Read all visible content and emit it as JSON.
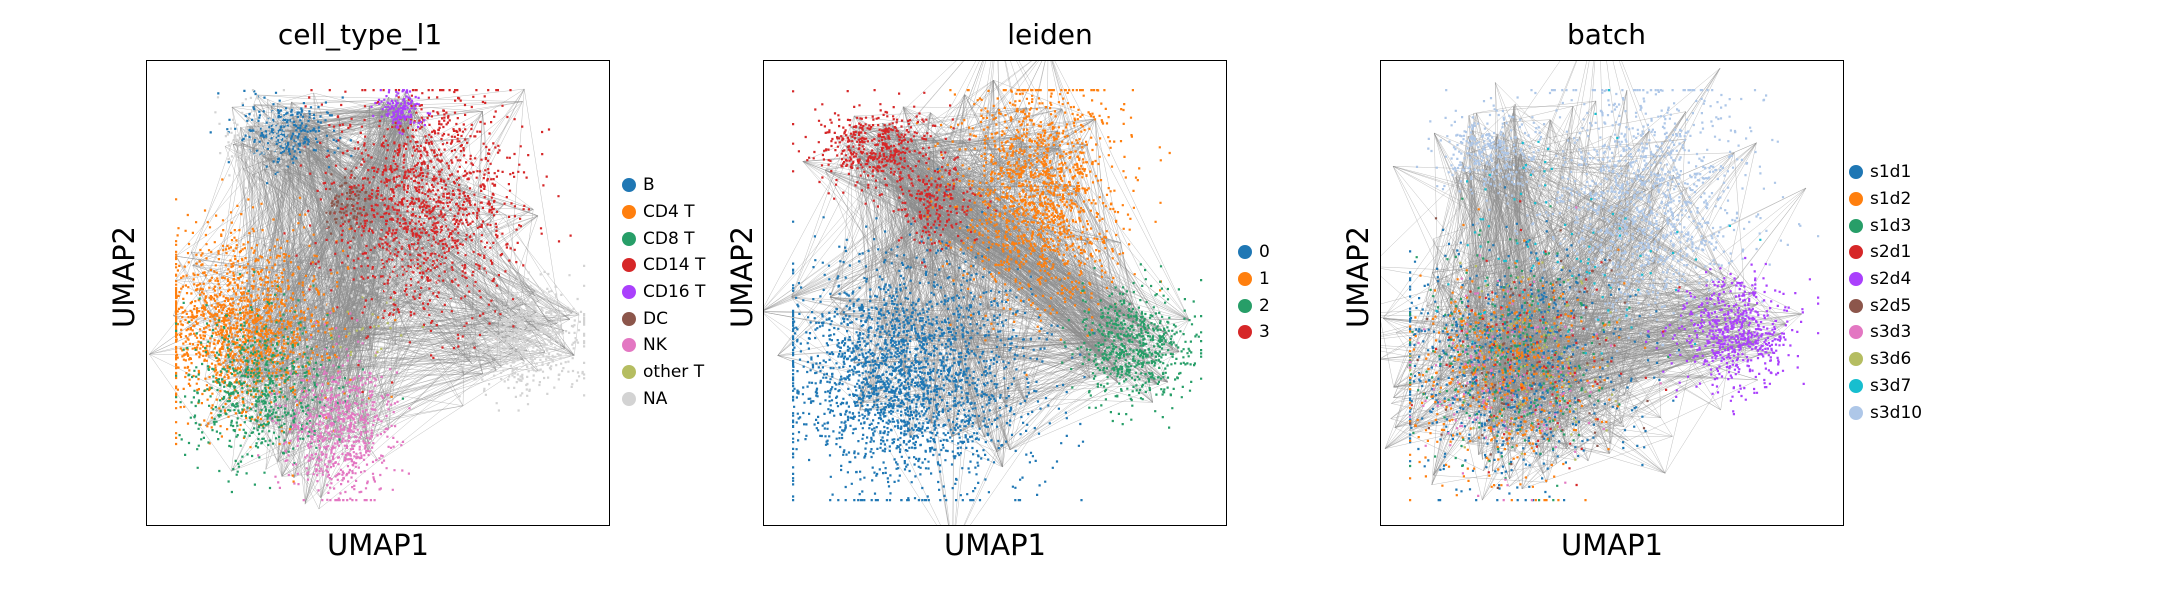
{
  "chart_data": [
    {
      "type": "scatter",
      "title": "cell_type_l1",
      "xlabel": "UMAP1",
      "ylabel": "UMAP2",
      "legend_position": "right",
      "categories": [
        "B",
        "CD4 T",
        "CD8 T",
        "CD14 T",
        "CD16 T",
        "DC",
        "NK",
        "other T",
        "NA"
      ],
      "colors": [
        "#1f77b4",
        "#ff7f0e",
        "#279e68",
        "#d62728",
        "#aa40fc",
        "#8c564b",
        "#e377c2",
        "#b5bd61",
        "#d3d3d3"
      ],
      "clusters": [
        {
          "category": "B",
          "x": -0.45,
          "y": 0.8,
          "sx": 0.12,
          "sy": 0.08,
          "n": 260
        },
        {
          "category": "CD4 T",
          "x": -0.7,
          "y": -0.15,
          "sx": 0.22,
          "sy": 0.22,
          "n": 1400
        },
        {
          "category": "CD8 T",
          "x": -0.6,
          "y": -0.45,
          "sx": 0.18,
          "sy": 0.18,
          "n": 600
        },
        {
          "category": "CD14 T",
          "x": 0.22,
          "y": 0.45,
          "sx": 0.22,
          "sy": 0.28,
          "n": 1300
        },
        {
          "category": "CD16 T",
          "x": 0.1,
          "y": 0.9,
          "sx": 0.05,
          "sy": 0.05,
          "n": 140
        },
        {
          "category": "DC",
          "x": -0.15,
          "y": 0.45,
          "sx": 0.06,
          "sy": 0.06,
          "n": 80
        },
        {
          "category": "NK",
          "x": -0.2,
          "y": -0.65,
          "sx": 0.13,
          "sy": 0.18,
          "n": 650
        },
        {
          "category": "other T",
          "x": -0.05,
          "y": -0.15,
          "sx": 0.1,
          "sy": 0.1,
          "n": 25
        },
        {
          "category": "NA",
          "x": 0.7,
          "y": -0.2,
          "sx": 0.16,
          "sy": 0.13,
          "n": 650
        },
        {
          "category": "NA",
          "x": -0.55,
          "y": 0.75,
          "sx": 0.1,
          "sy": 0.1,
          "n": 220
        },
        {
          "category": "NA",
          "x": 0.1,
          "y": 0.15,
          "sx": 0.2,
          "sy": 0.12,
          "n": 200
        }
      ],
      "xlim": [
        -1.0,
        1.0
      ],
      "ylim": [
        -1.0,
        1.0
      ],
      "grid": false
    },
    {
      "type": "scatter",
      "title": "leiden",
      "xlabel": "UMAP1",
      "ylabel": "UMAP2",
      "legend_position": "right",
      "categories": [
        "0",
        "1",
        "2",
        "3"
      ],
      "colors": [
        "#1f77b4",
        "#ff7f0e",
        "#279e68",
        "#d62728"
      ],
      "clusters": [
        {
          "category": "0",
          "x": -0.45,
          "y": -0.4,
          "sx": 0.3,
          "sy": 0.28,
          "n": 2300
        },
        {
          "category": "1",
          "x": 0.2,
          "y": 0.5,
          "sx": 0.2,
          "sy": 0.28,
          "n": 1400
        },
        {
          "category": "2",
          "x": 0.68,
          "y": -0.25,
          "sx": 0.14,
          "sy": 0.13,
          "n": 600
        },
        {
          "category": "3",
          "x": -0.6,
          "y": 0.72,
          "sx": 0.14,
          "sy": 0.1,
          "n": 450
        },
        {
          "category": "3",
          "x": -0.3,
          "y": 0.45,
          "sx": 0.1,
          "sy": 0.1,
          "n": 200
        }
      ],
      "xlim": [
        -1.0,
        1.0
      ],
      "ylim": [
        -1.0,
        1.0
      ],
      "grid": false
    },
    {
      "type": "scatter",
      "title": "batch",
      "xlabel": "UMAP1",
      "ylabel": "UMAP2",
      "legend_position": "right",
      "categories": [
        "s1d1",
        "s1d2",
        "s1d3",
        "s2d1",
        "s2d4",
        "s2d5",
        "s3d3",
        "s3d6",
        "s3d7",
        "s3d10"
      ],
      "colors": [
        "#1f77b4",
        "#ff7f0e",
        "#279e68",
        "#d62728",
        "#aa40fc",
        "#8c564b",
        "#e377c2",
        "#b5bd61",
        "#17becf",
        "#aec7e8"
      ],
      "clusters": [
        {
          "category": "s3d10",
          "x": 0.15,
          "y": 0.45,
          "sx": 0.25,
          "sy": 0.3,
          "n": 1200
        },
        {
          "category": "s1d1",
          "x": -0.55,
          "y": -0.35,
          "sx": 0.28,
          "sy": 0.28,
          "n": 700
        },
        {
          "category": "s1d2",
          "x": -0.55,
          "y": -0.4,
          "sx": 0.25,
          "sy": 0.26,
          "n": 500
        },
        {
          "category": "s1d3",
          "x": -0.55,
          "y": -0.3,
          "sx": 0.26,
          "sy": 0.26,
          "n": 300
        },
        {
          "category": "s2d4",
          "x": 0.6,
          "y": -0.2,
          "sx": 0.14,
          "sy": 0.14,
          "n": 600
        },
        {
          "category": "s3d10",
          "x": -0.6,
          "y": 0.7,
          "sx": 0.12,
          "sy": 0.1,
          "n": 300
        },
        {
          "category": "s3d3",
          "x": -0.5,
          "y": -0.45,
          "sx": 0.25,
          "sy": 0.25,
          "n": 150
        },
        {
          "category": "s3d6",
          "x": -0.4,
          "y": -0.3,
          "sx": 0.25,
          "sy": 0.25,
          "n": 120
        },
        {
          "category": "s3d7",
          "x": -0.3,
          "y": 0.2,
          "sx": 0.3,
          "sy": 0.3,
          "n": 100
        },
        {
          "category": "s2d1",
          "x": -0.4,
          "y": -0.3,
          "sx": 0.25,
          "sy": 0.25,
          "n": 100
        },
        {
          "category": "s2d5",
          "x": -0.4,
          "y": -0.3,
          "sx": 0.25,
          "sy": 0.25,
          "n": 80
        }
      ],
      "xlim": [
        -1.0,
        1.0
      ],
      "ylim": [
        -1.0,
        1.0
      ],
      "grid": false
    }
  ]
}
